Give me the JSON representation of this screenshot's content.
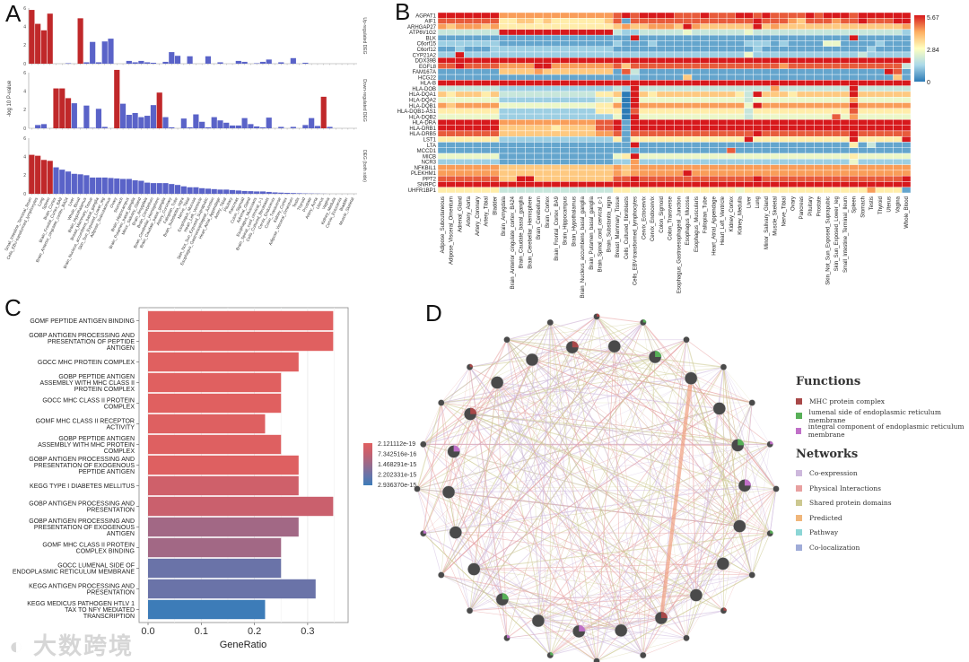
{
  "panels": {
    "a": "A",
    "b": "B",
    "c": "C",
    "d": "D"
  },
  "watermark": "大数跨境",
  "chart_data": [
    {
      "type": "bar",
      "panel": "A",
      "ylabel": "-log 10 P-value",
      "ylim": [
        0,
        6
      ],
      "yticks": [
        0,
        2,
        4,
        6
      ],
      "facets": [
        "Up-regulated DEG",
        "Down-regulated DEG",
        "DEG (both side)"
      ],
      "colors": {
        "significant": "#c0282a",
        "nonsignificant": "#5a63c8"
      },
      "categories": [
        "Small_Intestine_Terminal_Ileum",
        "Cells_EBV-transformed_lymphocytes",
        "Lung",
        "Spleen",
        "Brain_Cortex",
        "Brain_Frontal_Cortex_BA9",
        "Brain_Anterior_cingulate_cortex_BA24",
        "Liver",
        "Whole_Blood",
        "Brain_Hypothalamus",
        "Breast_Mammary_Tissue",
        "Brain_Nucleus_accumbens_basal_ganglia",
        "Skin_Sun_Exposed_Lower_leg",
        "Adipose_Subcutaneous",
        "Ovary",
        "Stomach",
        "Brain_Hippocampus",
        "Brain_Putamen_basal_ganglia",
        "Minor_Salivary_Gland",
        "Brain_Amygdala",
        "Brain_Cerebellum",
        "Brain_Cerebellar_Hemisphere",
        "Brain_Caudate_basal_ganglia",
        "Artery_Coronary",
        "Fallopian_Tube",
        "Brain_Substantia_nigra",
        "Nerve_Tibial",
        "Esophagus_Mucosa",
        "Heart_Left_Ventricle",
        "Skin_Not_Sun_Exposed_Suprapubic",
        "Esophagus_Gastroesophageal_Junction",
        "Heart_Atrial_Appendage",
        "Artery_Tibial",
        "Pituitary",
        "Pancreas",
        "Colon_Sigmoid",
        "Adrenal_Gland",
        "Esophagus_Muscularis",
        "Brain_Spinal_cord_cervical_c-1",
        "Cells_Cultured_fibroblasts",
        "Cervix_Endocervix",
        "Colon_Transverse",
        "Kidney_Cortex",
        "Adipose_Visceral_Omentum",
        "Testis",
        "Thyroid",
        "Prostate",
        "Artery_Aorta",
        "Uterus",
        "Vagina",
        "Kidney_Medulla",
        "Cervix_Ectocervix",
        "Bladder",
        "Muscle_Skeletal"
      ],
      "series": [
        {
          "name": "Up-regulated DEG",
          "significant": [
            0,
            1,
            2,
            3,
            8
          ],
          "values": [
            5.8,
            4.3,
            3.6,
            5.4,
            0,
            0,
            0.05,
            0,
            4.9,
            0.15,
            2.35,
            0.15,
            2.4,
            2.7,
            0,
            0,
            0.3,
            0.15,
            0.3,
            0.15,
            0.1,
            0,
            0.2,
            1.25,
            0.85,
            0,
            0.8,
            0,
            0,
            0.8,
            0,
            0.15,
            0,
            0,
            0.3,
            0.2,
            0,
            0.05,
            0.2,
            0.45,
            0,
            0.15,
            0,
            0.6,
            0,
            0.1,
            0,
            0,
            0,
            0,
            0,
            0,
            0,
            0
          ]
        },
        {
          "name": "Down-regulated DEG",
          "significant": [
            4,
            5,
            6,
            14,
            21,
            48
          ],
          "values": [
            0,
            0.35,
            0.45,
            0,
            4.3,
            4.3,
            3.25,
            2.7,
            0.05,
            2.45,
            0.05,
            2.1,
            0.15,
            0,
            6.3,
            2.65,
            1.45,
            1.65,
            1.2,
            1.35,
            2.5,
            3.85,
            1.2,
            0.1,
            0,
            1.05,
            0.1,
            1.5,
            0.7,
            0.1,
            1.2,
            0.85,
            0.6,
            0.3,
            0.3,
            1.1,
            0.45,
            0.2,
            0.1,
            1.15,
            0,
            0.15,
            0,
            0.15,
            0,
            0.35,
            1.1,
            0.25,
            3.4,
            0.15,
            0,
            0,
            0,
            0
          ]
        },
        {
          "name": "DEG (both side)",
          "significant": [
            0,
            1,
            2,
            3
          ],
          "values": [
            4.2,
            4.1,
            3.65,
            3.55,
            2.85,
            2.6,
            2.4,
            2.15,
            2.1,
            2.0,
            1.75,
            1.75,
            1.75,
            1.7,
            1.65,
            1.6,
            1.6,
            1.45,
            1.4,
            1.2,
            1.15,
            1.15,
            1.15,
            1.05,
            0.95,
            0.8,
            0.7,
            0.7,
            0.6,
            0.55,
            0.5,
            0.45,
            0.45,
            0.4,
            0.35,
            0.3,
            0.28,
            0.25,
            0.25,
            0.2,
            0.15,
            0.12,
            0.1,
            0.08,
            0.06,
            0.04,
            0.03,
            0.02,
            0.01,
            0,
            0,
            0,
            0,
            0
          ]
        }
      ]
    },
    {
      "type": "heatmap",
      "panel": "B",
      "scale_max": 5.67,
      "colorbar_labels": [
        "5.67",
        "2.84",
        "0"
      ],
      "levels": "0-9 digits map linearly to 0..5.67",
      "colors": [
        "#2c7bb6",
        "#abd9e9",
        "#ffffbf",
        "#fdae61",
        "#d7191c"
      ],
      "rows": [
        "AGPAT1",
        "AIF1",
        "ARHGAP27",
        "ATP6V1G2",
        "BLK",
        "C6orf15",
        "C6orf12",
        "CYP21A2",
        "DDX39B",
        "EGFL8",
        "FAM167A",
        "HCG22",
        "HLA-B",
        "HLA-DOB",
        "HLA-DQA1",
        "HLA-DQA2",
        "HLA-DQB1",
        "HLA-DQB1-AS1",
        "HLA-DQB2",
        "HLA-DRA",
        "HLA-DRB1",
        "HLA-DRB5",
        "LST1",
        "LTA",
        "MCCD1",
        "MICB",
        "NCR3",
        "NFKBIL1",
        "PLEKHM1",
        "PPT2",
        "SNRPC",
        "UHFR1BP1"
      ],
      "columns": [
        "Adipose_Subcutaneous",
        "Adipose_Visceral_Omentum",
        "Adrenal_Gland",
        "Artery_Aorta",
        "Artery_Coronary",
        "Artery_Tibial",
        "Bladder",
        "Brain_Amygdala",
        "Brain_Anterior_cingulate_cortex_BA24",
        "Brain_Caudate_basal_ganglia",
        "Brain_Cerebellar_Hemisphere",
        "Brain_Cerebellum",
        "Brain_Cortex",
        "Brain_Frontal_Cortex_BA9",
        "Brain_Hippocampus",
        "Brain_Hypothalamus",
        "Brain_Nucleus_accumbens_basal_ganglia",
        "Brain_Putamen_basal_ganglia",
        "Brain_Spinal_cord_cervical_c-1",
        "Brain_Substantia_nigra",
        "Breast_Mammary_Tissue",
        "Cells_Cultured_fibroblasts",
        "Cells_EBV-transformed_lymphocytes",
        "Cervix_Ectocervix",
        "Cervix_Endocervix",
        "Colon_Sigmoid",
        "Colon_Transverse",
        "Esophagus_Gastroesophageal_Junction",
        "Esophagus_Mucosa",
        "Esophagus_Muscularis",
        "Fallopian_Tube",
        "Heart_Atrial_Appendage",
        "Heart_Left_Ventricle",
        "Kidney_Cortex",
        "Kidney_Medulla",
        "Liver",
        "Lung",
        "Minor_Salivary_Gland",
        "Muscle_Skeletal",
        "Nerve_Tibial",
        "Ovary",
        "Pancreas",
        "Pituitary",
        "Prostate",
        "Skin_Not_Sun_Exposed_Suprapubic",
        "Skin_Sun_Exposed_Lower_leg",
        "Small_Intestine_Terminal_Ileum",
        "Spleen",
        "Stomach",
        "Testis",
        "Thyroid",
        "Uterus",
        "Vagina",
        "Whole_Blood"
      ],
      "values": [
        "9999999|7777777777777|898|9999888988|8998988889|89998999999",
        "8888888|5566565555556|818|8888888888|8889888768|88788988899",
        "7677767|5555555555555|676|6777697666|6669676666|66666666667",
        "3333333|9999999999999|322|3333343333|3343333333|33333333332",
        "1111111|1111111111111|119|1111111111|1111111111|11119111111",
        "2222222|1111111111111|211|1211111111|1122212111|14411112111",
        "1121112|2222222222222|111|1111111111|1112111111|11111121111",
        "2292222|2222222222222|222|2222222222|2242222222|22222322222",
        "9999999|9999999999999|999|9999999999|9999999999|99999999999",
        "8898888|7777997777777|868|8888888888|8888887888|88888888883",
        "1111111|6666766666666|183|1111111111|1111111111|11111111981",
        "1111111|1111111111111|112|1111161111|1111111111|11111111161",
        "9999999|9999999999999|999|9999999999|9999999999|99999999999",
        "3333333|2222222222222|329|3333333333|3333373333|33339333333",
        "6566656|3333333333355|609|6566666666|6539666566|66669666666",
        "4444444|2222222222233|409|4444444444|4434444444|44447444444",
        "7677777|4444444444455|709|7777777777|7749777777|77779777777",
        "5555555|2222222222255|508|5555555555|5535555555|55558555555",
        "4444444|2222222222222|409|4444444444|4434444444|44847444444",
        "9999999|7777777777788|919|9999999999|9999999999|99999999999",
        "9999999|6666665666688|919|9999999999|9999999999|99999999999",
        "8888888|6666666666677|818|8888888888|8889888888|88889888888",
        "5555555|2222222222222|515|5555555555|5595555555|55559555559",
        "1111111|1111111111111|119|1111111111|1111111111|11115131111",
        "1111111|1111111111111|111|1111111111|8111111111|11111111111",
        "4444444|1111111111111|459|4444444444|4444444444|44445444444",
        "2222222|1111111111111|227|2222222222|2222222222|22224222222",
        "7777777|6666666666666|767|7777777777|7777777777|77777777777",
        "7777777|6666666666666|767|7777797777|7777777777|77777777777",
        "8888888|6699666666666|889|8888888888|8889888888|88888888889",
        "9999999|9999999999999|999|9999999999|9999999999|99999999999",
        "5555555|3333333333333|554|5555555555|5455555555|55555575551"
      ]
    },
    {
      "type": "bar",
      "panel": "C",
      "orientation": "horizontal",
      "xlabel": "GeneRatio",
      "xlim": [
        0,
        0.36
      ],
      "xticks": [
        "0.0",
        "0.1",
        "0.2",
        "0.3"
      ],
      "legend_labels": [
        "2.121112e-19",
        "7.342516e-16",
        "1.468291e-15",
        "2.202331e-15",
        "2.936370e-15"
      ],
      "legend_colors": [
        "#e06060",
        "#c46070",
        "#9a6a8a",
        "#6a73a8",
        "#3d7cb8"
      ],
      "categories": [
        "GOMF PEPTIDE ANTIGEN BINDING",
        "GOBP ANTIGEN PROCESSING AND PRESENTATION OF PEPTIDE ANTIGEN",
        "GOCC MHC PROTEIN COMPLEX",
        "GOBP PEPTIDE ANTIGEN ASSEMBLY WITH MHC CLASS II PROTEIN COMPLEX",
        "GOCC MHC CLASS II PROTEIN COMPLEX",
        "GOMF MHC CLASS II RECEPTOR ACTIVITY",
        "GOBP PEPTIDE ANTIGEN ASSEMBLY WITH MHC PROTEIN COMPLEX",
        "GOBP ANTIGEN PROCESSING AND PRESENTATION OF EXOGENOUS PEPTIDE ANTIGEN",
        "KEGG TYPE I DIABETES MELLITUS",
        "GOBP ANTIGEN PROCESSING AND PRESENTATION",
        "GOBP ANTIGEN PROCESSING AND PRESENTATION OF EXOGENOUS ANTIGEN",
        "GOMF MHC CLASS II PROTEIN COMPLEX BINDING",
        "GOCC LUMENAL SIDE OF ENDOPLASMIC RETICULUM MEMBRANE",
        "KEGG ANTIGEN PROCESSING AND PRESENTATION",
        "KEGG MEDICUS PATHOGEN HTLV 1 TAX TO NFY MEDIATED TRANSCRIPTION"
      ],
      "label_lines": [
        [
          "GOMF PEPTIDE ANTIGEN BINDING"
        ],
        [
          "GOBP ANTIGEN PROCESSING AND",
          "PRESENTATION OF PEPTIDE",
          "ANTIGEN"
        ],
        [
          "GOCC MHC PROTEIN COMPLEX"
        ],
        [
          "GOBP PEPTIDE ANTIGEN",
          "ASSEMBLY WITH MHC CLASS II",
          "PROTEIN COMPLEX"
        ],
        [
          "GOCC MHC CLASS II PROTEIN",
          "COMPLEX"
        ],
        [
          "GOMF MHC CLASS II RECEPTOR",
          "ACTIVITY"
        ],
        [
          "GOBP PEPTIDE ANTIGEN",
          "ASSEMBLY WITH MHC PROTEIN",
          "COMPLEX"
        ],
        [
          "GOBP ANTIGEN PROCESSING AND",
          "PRESENTATION OF EXOGENOUS",
          "PEPTIDE ANTIGEN"
        ],
        [
          "KEGG TYPE I DIABETES MELLITUS"
        ],
        [
          "GOBP ANTIGEN PROCESSING AND",
          "PRESENTATION"
        ],
        [
          "GOBP ANTIGEN PROCESSING AND",
          "PRESENTATION OF EXOGENOUS",
          "ANTIGEN"
        ],
        [
          "GOMF MHC CLASS II PROTEIN",
          "COMPLEX BINDING"
        ],
        [
          "GOCC LUMENAL SIDE OF",
          "ENDOPLASMIC RETICULUM MEMBRANE"
        ],
        [
          "KEGG ANTIGEN PROCESSING AND",
          "PRESENTATION"
        ],
        [
          "KEGG MEDICUS PATHOGEN HTLV 1",
          "TAX TO NFY MEDIATED",
          "TRANSCRIPTION"
        ]
      ],
      "values": [
        0.348,
        0.348,
        0.283,
        0.25,
        0.25,
        0.22,
        0.25,
        0.283,
        0.283,
        0.348,
        0.283,
        0.25,
        0.25,
        0.315,
        0.22
      ],
      "color_fraction": [
        0,
        0,
        0,
        0,
        0,
        0.02,
        0.02,
        0.02,
        0.15,
        0.2,
        0.45,
        0.45,
        0.75,
        0.75,
        1.0
      ]
    }
  ],
  "network": {
    "title_functions": "Functions",
    "title_networks": "Networks",
    "functions": [
      {
        "label": "MHC protein complex",
        "color": "#a84848"
      },
      {
        "label": "lumenal side of endoplasmic reticulum membrane",
        "color": "#58b058"
      },
      {
        "label": "integral component of endoplasmic reticulum membrane",
        "color": "#c070c8"
      }
    ],
    "networks": [
      {
        "label": "Co-expression",
        "color": "#cdb8dc"
      },
      {
        "label": "Physical Interactions",
        "color": "#e8a0a0"
      },
      {
        "label": "Shared protein domains",
        "color": "#ccc890"
      },
      {
        "label": "Predicted",
        "color": "#f0b67a"
      },
      {
        "label": "Pathway",
        "color": "#8cd6d6"
      },
      {
        "label": "Co-localization",
        "color": "#a0acd8"
      }
    ]
  }
}
